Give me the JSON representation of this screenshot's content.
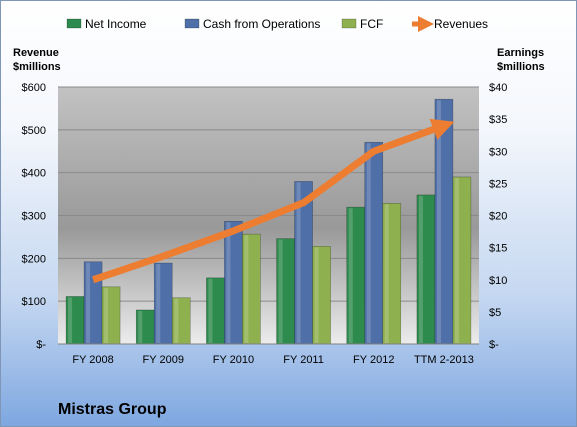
{
  "chart_data": {
    "type": "bar",
    "title": "Mistras Group",
    "categories": [
      "FY 2008",
      "FY 2009",
      "FY 2010",
      "FY 2011",
      "FY 2012",
      "TTM 2-2013"
    ],
    "left_axis": {
      "label_line1": "Revenue",
      "label_line2": "$millions",
      "ylim": [
        0,
        600
      ],
      "ticks": [
        0,
        100,
        200,
        300,
        400,
        500,
        600
      ],
      "tick_labels": [
        "$-",
        "$100",
        "$200",
        "$300",
        "$400",
        "$500",
        "$600"
      ]
    },
    "right_axis": {
      "label_line1": "Earnings",
      "label_line2": "$millions",
      "ylim": [
        0,
        40
      ],
      "ticks": [
        0,
        5,
        10,
        15,
        20,
        25,
        30,
        35,
        40
      ],
      "tick_labels": [
        "$-",
        "$5",
        "$10",
        "$15",
        "$20",
        "$25",
        "$30",
        "$35",
        "$40"
      ]
    },
    "series": [
      {
        "name": "Net Income",
        "type": "bar",
        "axis": "right",
        "color": "#2e8b4e",
        "values": [
          7.4,
          5.3,
          10.3,
          16.4,
          21.3,
          23.2
        ]
      },
      {
        "name": "Cash from Operations",
        "type": "bar",
        "axis": "right",
        "color": "#4f6fa8",
        "values": [
          12.8,
          12.6,
          19.1,
          25.3,
          31.4,
          38.1
        ]
      },
      {
        "name": "FCF",
        "type": "bar",
        "axis": "right",
        "color": "#8fb04f",
        "values": [
          8.9,
          7.2,
          17.1,
          15.2,
          21.9,
          26.0
        ]
      },
      {
        "name": "Revenues",
        "type": "line",
        "axis": "left",
        "color": "#ed7d31",
        "values": [
          150,
          205,
          264,
          330,
          450,
          510
        ]
      }
    ],
    "grid": true,
    "legend_position": "top"
  }
}
